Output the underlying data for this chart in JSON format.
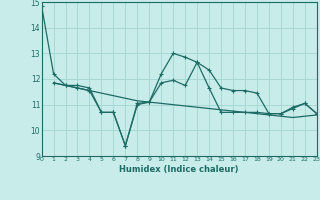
{
  "xlabel": "Humidex (Indice chaleur)",
  "xlim": [
    0,
    23
  ],
  "ylim": [
    9,
    15
  ],
  "yticks": [
    9,
    10,
    11,
    12,
    13,
    14,
    15
  ],
  "xticks": [
    0,
    1,
    2,
    3,
    4,
    5,
    6,
    7,
    8,
    9,
    10,
    11,
    12,
    13,
    14,
    15,
    16,
    17,
    18,
    19,
    20,
    21,
    22,
    23
  ],
  "bg_color": "#c8ecea",
  "grid_color": "#a8d8d4",
  "line_color": "#1e6b65",
  "line1_x": [
    0,
    1,
    2,
    3,
    4,
    5,
    6,
    7,
    8,
    9,
    10,
    11,
    12,
    13,
    14,
    15,
    16,
    17,
    18,
    19,
    20,
    21,
    22,
    23
  ],
  "line1_y": [
    14.85,
    12.2,
    11.75,
    11.75,
    11.65,
    10.7,
    10.7,
    9.4,
    11.0,
    11.1,
    12.2,
    13.0,
    12.85,
    12.65,
    12.35,
    11.65,
    11.55,
    11.55,
    11.45,
    10.65,
    10.65,
    10.9,
    11.05,
    10.65
  ],
  "line2_x": [
    1,
    2,
    3,
    4,
    5,
    6,
    7,
    8,
    9,
    10,
    11,
    12,
    13,
    14,
    15,
    16,
    17,
    18,
    19,
    20,
    21,
    22,
    23
  ],
  "line2_y": [
    11.85,
    11.75,
    11.65,
    11.55,
    11.45,
    11.35,
    11.25,
    11.15,
    11.1,
    11.05,
    11.0,
    10.95,
    10.9,
    10.85,
    10.8,
    10.75,
    10.7,
    10.65,
    10.6,
    10.55,
    10.5,
    10.55,
    10.6
  ],
  "line3_x": [
    1,
    2,
    3,
    4,
    5,
    6,
    7,
    8,
    9,
    10,
    11,
    12,
    13,
    14,
    15,
    16,
    17,
    18,
    19,
    20,
    21,
    22,
    23
  ],
  "line3_y": [
    11.85,
    11.75,
    11.65,
    11.55,
    10.7,
    10.7,
    9.4,
    11.05,
    11.1,
    11.85,
    11.95,
    11.75,
    12.65,
    11.65,
    10.7,
    10.7,
    10.7,
    10.7,
    10.65,
    10.65,
    10.85,
    11.05,
    10.65
  ]
}
